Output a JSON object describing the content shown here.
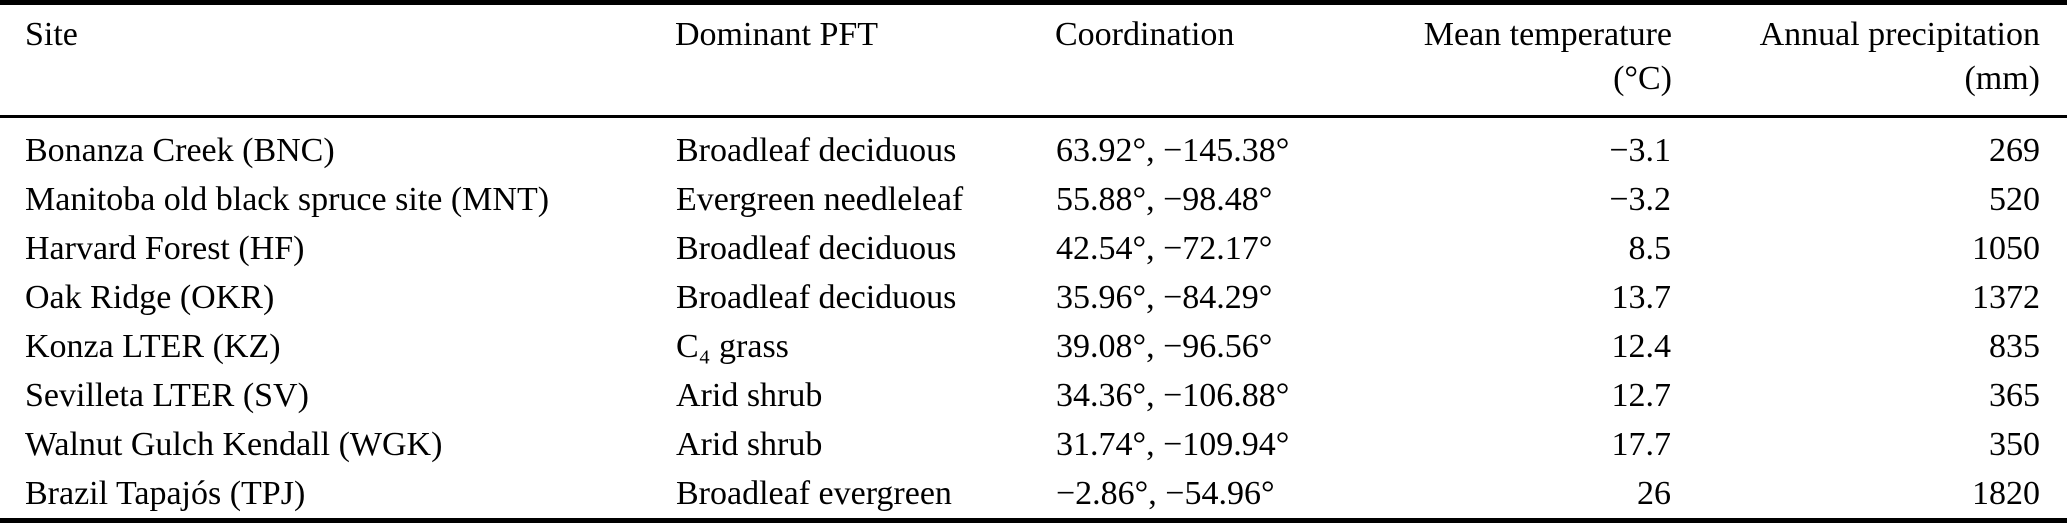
{
  "table": {
    "columns": [
      {
        "label": "Site",
        "unit": ""
      },
      {
        "label": "Dominant PFT",
        "unit": ""
      },
      {
        "label": "Coordination",
        "unit": ""
      },
      {
        "label": "Mean temperature",
        "unit": "(°C)"
      },
      {
        "label": "Annual precipitation",
        "unit": "(mm)"
      }
    ],
    "rows": [
      {
        "site": "Bonanza Creek (BNC)",
        "pft": "Broadleaf deciduous",
        "coordination": "63.92°, −145.38°",
        "mean_temperature": "−3.1",
        "annual_precipitation": "269"
      },
      {
        "site": "Manitoba old black spruce site (MNT)",
        "pft": "Evergreen needleleaf",
        "coordination": "55.88°, −98.48°",
        "mean_temperature": "−3.2",
        "annual_precipitation": "520"
      },
      {
        "site": "Harvard Forest (HF)",
        "pft": "Broadleaf deciduous",
        "coordination": "42.54°, −72.17°",
        "mean_temperature": "8.5",
        "annual_precipitation": "1050"
      },
      {
        "site": "Oak Ridge (OKR)",
        "pft": "Broadleaf deciduous",
        "coordination": "35.96°, −84.29°",
        "mean_temperature": "13.7",
        "annual_precipitation": "1372"
      },
      {
        "site": "Konza LTER (KZ)",
        "pft": "C₄ grass",
        "coordination": "39.08°, −96.56°",
        "mean_temperature": "12.4",
        "annual_precipitation": "835"
      },
      {
        "site": "Sevilleta LTER (SV)",
        "pft": "Arid shrub",
        "coordination": "34.36°, −106.88°",
        "mean_temperature": "12.7",
        "annual_precipitation": "365"
      },
      {
        "site": "Walnut Gulch Kendall (WGK)",
        "pft": "Arid shrub",
        "coordination": "31.74°, −109.94°",
        "mean_temperature": "17.7",
        "annual_precipitation": "350"
      },
      {
        "site": "Brazil Tapajós (TPJ)",
        "pft": "Broadleaf evergreen",
        "coordination": "−2.86°, −54.96°",
        "mean_temperature": "26",
        "annual_precipitation": "1820"
      }
    ],
    "colors": {
      "text": "#000000",
      "background": "#ffffff",
      "rule": "#000000"
    }
  }
}
